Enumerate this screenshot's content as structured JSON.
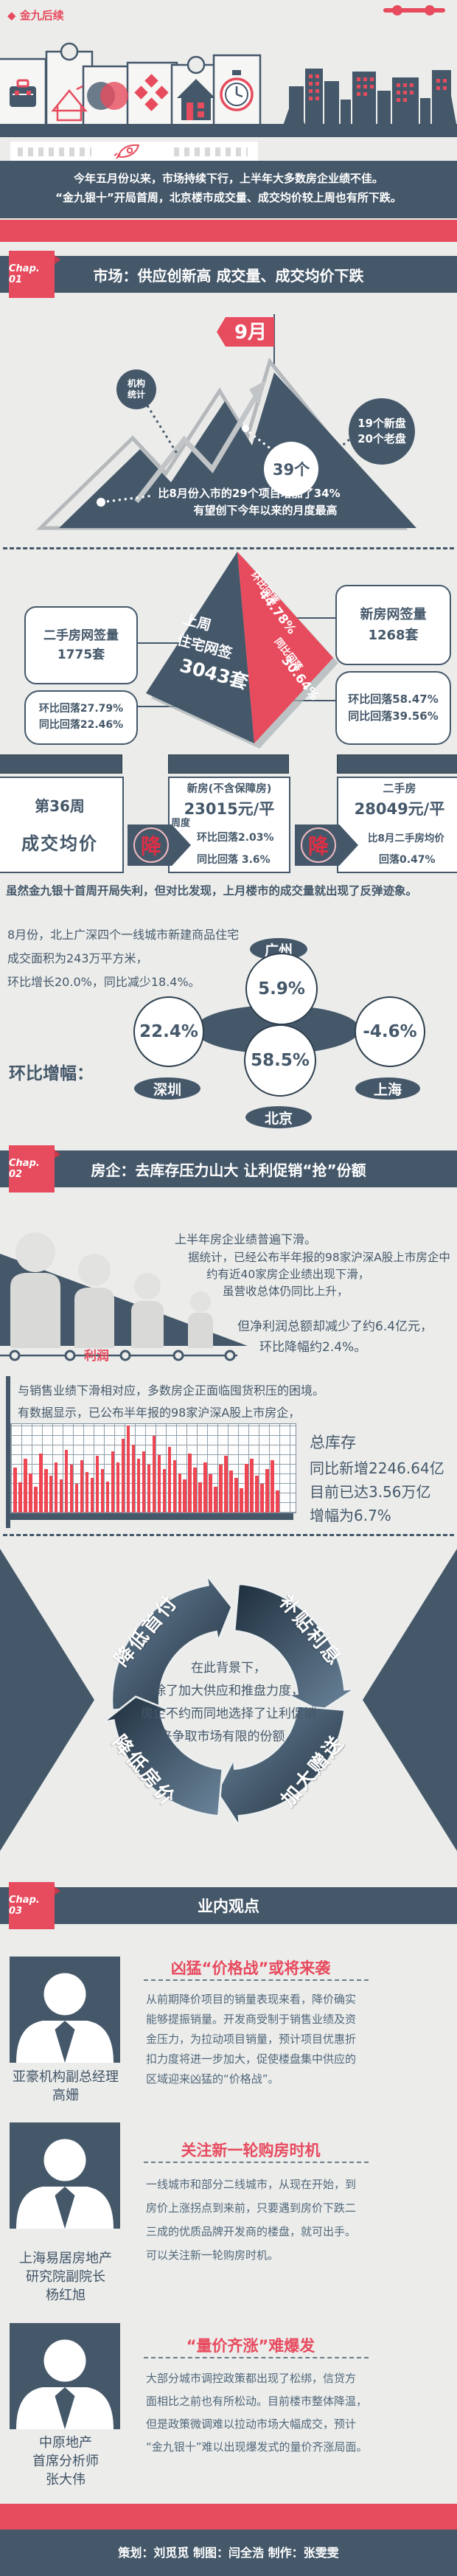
{
  "page": {
    "bg": "#ecedeb",
    "dark": "#45586a",
    "red": "#e74c5e"
  },
  "header": {
    "title": "◆ 金九后续"
  },
  "intro": {
    "line1": "今年五月份以来，市场持续下行，上半年大多数房企业绩不佳。",
    "line2": "“金九银十”开局首周，北京楼市成交量、成交均价较上周也有所下跌。"
  },
  "chapters": {
    "c1": {
      "badge": "Chap. 01",
      "title": "市场：供应创新高  成交量、成交均价下跌"
    },
    "c2": {
      "badge": "Chap. 02",
      "title": "房企：去库存压力山大  让利促销“抢”份额"
    },
    "c3": {
      "badge": "Chap. 03",
      "title": "业内观点"
    }
  },
  "mountain": {
    "flag": "9月",
    "stat1": "机构",
    "stat2": "统计",
    "count": "39个",
    "mix1": "19个新盘",
    "mix2": "20个老盘",
    "note1": "比8月份入市的29个项目增加了34%",
    "note2": "有望创下今年以来的月度最高"
  },
  "pyramid": {
    "p1": "上周",
    "p2": "住宅网签",
    "p3": "3043套",
    "r1": "环比回落",
    "r2": "44.78%",
    "r3": "同比回落",
    "r4": "30.64%",
    "lb1a": "二手房网签量",
    "lb1b": "1775套",
    "lb2a": "环比回落27.79%",
    "lb2b": "同比回落22.46%",
    "rb1a": "新房网签量",
    "rb1b": "1268套",
    "rb2a": "环比回落58.47%",
    "rb2b": "同比回落39.56%"
  },
  "price": {
    "week1": "第36周",
    "week2": "成交均价",
    "new_title": "新房(不含保障房)",
    "new_price": "23015元/平",
    "period": "周度",
    "down": "降",
    "new_l1": "环比回落2.03%",
    "new_l2": "同比回落 3.6%",
    "old_title": "二手房",
    "old_price": "28049元/平",
    "old_l1": "比8月二手房均价",
    "old_l2": "回落0.47%"
  },
  "rebound": "虽然金九银十首周开局失利，但对比发现，上月楼市的成交量就出现了反弹迹象。",
  "cities": {
    "l1": "8月份，北上广深四个一线城市新建商品住宅",
    "l2": "成交面积为243万平方米，",
    "l3": "环比增长20.0%，同比减少18.4%。",
    "label": "环比增幅：",
    "items": [
      {
        "name": "广州",
        "value": "5.9%"
      },
      {
        "name": "深圳",
        "value": "22.4%"
      },
      {
        "name": "北京",
        "value": "58.5%"
      },
      {
        "name": "上海",
        "value": "-4.6%"
      }
    ]
  },
  "profit": {
    "l1": "上半年房企业绩普遍下滑。",
    "l2": "据统计，已经公布半年报的98家沪深A股上市房企中",
    "l3": "约有近40家房企业绩出现下滑，",
    "l4": "虽营收总体仍同比上升，",
    "l5": "但净利润总额却减少了约6.4亿元，",
    "l6": "环比降幅约2.4%。",
    "label": "利润"
  },
  "inventory": {
    "l1": "与销售业绩下滑相对应，多数房企正面临囤货积压的困境。",
    "l2": "有数据显示，已公布半年报的98家沪深A股上市房企，",
    "s1": "总库存",
    "s2": "同比新增2246.64亿",
    "s3": "目前已达3.56万亿",
    "s4": "增幅为6.7%",
    "chart": {
      "type": "bar",
      "bars": [
        0.52,
        0.35,
        0.62,
        0.45,
        0.3,
        0.68,
        0.5,
        0.42,
        0.58,
        0.38,
        0.72,
        0.55,
        0.33,
        0.6,
        0.47,
        0.4,
        0.65,
        0.5,
        0.36,
        0.7,
        0.58,
        0.85,
        1.0,
        0.78,
        0.62,
        0.7,
        0.55,
        0.88,
        0.66,
        0.5,
        0.75,
        0.6,
        0.45,
        0.38,
        0.68,
        0.52,
        0.35,
        0.58,
        0.44,
        0.3,
        0.55,
        0.65,
        0.48,
        0.4,
        0.28,
        0.56,
        0.62,
        0.42,
        0.33,
        0.5,
        0.6,
        0.25
      ]
    }
  },
  "cycle": {
    "labels": [
      "降低首付",
      "补贴利息",
      "加大赠送",
      "降低房价"
    ],
    "c1": "在此背景下，",
    "c2": "除了加大供应和推盘力度，",
    "c3": "房企不约而同地选择了让利促销",
    "c4": "来争取市场有限的份额，"
  },
  "experts": [
    {
      "title": "凶猛“价格战”或将来袭",
      "name1": "亚豪机构副总经理",
      "name2": "高姗",
      "name3": "",
      "body": [
        "从前期降价项目的销量表现来看，降价确实",
        "能够提振销量。开发商受制于销售业绩及资",
        "金压力，为拉动项目销量，预计项目优惠折",
        "扣力度将进一步加大，促使楼盘集中供应的",
        "区域迎来凶猛的“价格战”。"
      ]
    },
    {
      "title": "关注新一轮购房时机",
      "name1": "上海易居房地产",
      "name2": "研究院副院长",
      "name3": "杨红旭",
      "body": [
        "一线城市和部分二线城市，从现在开始，到",
        "房价上涨拐点到来前，只要遇到房价下跌二",
        "三成的优质品牌开发商的楼盘，就可出手。",
        "可以关注新一轮购房时机。",
        ""
      ]
    },
    {
      "title": "“量价齐涨”难爆发",
      "name1": "中原地产",
      "name2": "首席分析师",
      "name3": "张大伟",
      "body": [
        "大部分城市调控政策都出现了松绑，信贷方",
        "面相比之前也有所松动。目前楼市整体降温，",
        "但是政策微调难以拉动市场大幅成交，预计",
        "“金九银十”难以出现爆发式的量价齐涨局面。",
        ""
      ]
    }
  ],
  "footer": {
    "credits": "策划：刘觅觅  制图：闫全浩  制作：张雯雯"
  }
}
